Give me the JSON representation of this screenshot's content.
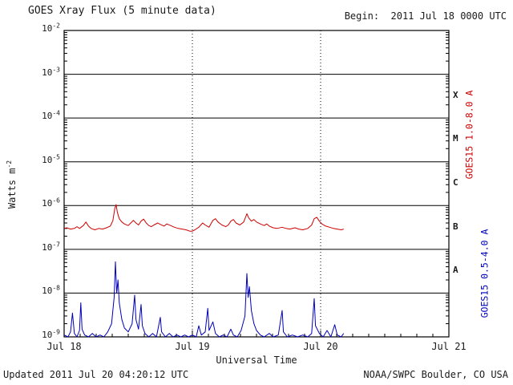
{
  "header": {
    "title": "GOES Xray Flux (5 minute data)",
    "begin_label": "Begin:  2011 Jul 18 0000 UTC"
  },
  "footer": {
    "updated": "Updated 2011 Jul 20 04:20:12 UTC",
    "credit": "NOAA/SWPC Boulder, CO USA"
  },
  "chart_data": {
    "type": "line",
    "title": "GOES Xray Flux (5 minute data)",
    "xlabel": "Universal Time",
    "ylabel": "Watts m-2",
    "y_axis_label": {
      "base": "Watts m",
      "exp": "-2"
    },
    "x_ticks": [
      "Jul 18",
      "Jul 19",
      "Jul 20",
      "Jul 21"
    ],
    "x_range_days": 3,
    "y_log_range": [
      -9,
      -2
    ],
    "y_tick_base": "10",
    "y_tick_exponents": [
      -2,
      -3,
      -4,
      -5,
      -6,
      -7,
      -8,
      -9
    ],
    "grid": {
      "horizontal_decades": true,
      "vertical_dotted_days": true
    },
    "flare_classes": [
      {
        "label": "X",
        "flux": 0.000316
      },
      {
        "label": "M",
        "flux": 3.16e-05
      },
      {
        "label": "C",
        "flux": 3.16e-06
      },
      {
        "label": "B",
        "flux": 3.16e-07
      },
      {
        "label": "A",
        "flux": 3.16e-08
      }
    ],
    "right_labels": [
      {
        "id": "long",
        "text": "GOES15 1.0-8.0 A",
        "color": "#cc0000"
      },
      {
        "id": "short",
        "text": "GOES15 0.5-4.0 A",
        "color": "#0000bb"
      }
    ],
    "series": [
      {
        "id": "xray-long",
        "name": "GOES15 1.0-8.0 A",
        "color": "#cc0000",
        "points": [
          [
            0.0,
            3e-07
          ],
          [
            0.02,
            3.1e-07
          ],
          [
            0.05,
            2.9e-07
          ],
          [
            0.08,
            3e-07
          ],
          [
            0.1,
            3.3e-07
          ],
          [
            0.12,
            3e-07
          ],
          [
            0.15,
            3.5e-07
          ],
          [
            0.17,
            4.2e-07
          ],
          [
            0.19,
            3.4e-07
          ],
          [
            0.21,
            3e-07
          ],
          [
            0.24,
            2.8e-07
          ],
          [
            0.27,
            3e-07
          ],
          [
            0.3,
            2.9e-07
          ],
          [
            0.33,
            3.1e-07
          ],
          [
            0.36,
            3.4e-07
          ],
          [
            0.38,
            4.5e-07
          ],
          [
            0.395,
            8.5e-07
          ],
          [
            0.405,
            1.05e-06
          ],
          [
            0.415,
            7e-07
          ],
          [
            0.43,
            5e-07
          ],
          [
            0.45,
            4.2e-07
          ],
          [
            0.47,
            3.8e-07
          ],
          [
            0.5,
            3.5e-07
          ],
          [
            0.52,
            4e-07
          ],
          [
            0.54,
            4.6e-07
          ],
          [
            0.56,
            4e-07
          ],
          [
            0.58,
            3.6e-07
          ],
          [
            0.6,
            4.4e-07
          ],
          [
            0.62,
            4.9e-07
          ],
          [
            0.64,
            4e-07
          ],
          [
            0.66,
            3.5e-07
          ],
          [
            0.68,
            3.3e-07
          ],
          [
            0.7,
            3.6e-07
          ],
          [
            0.73,
            4e-07
          ],
          [
            0.75,
            3.7e-07
          ],
          [
            0.78,
            3.4e-07
          ],
          [
            0.8,
            3.8e-07
          ],
          [
            0.83,
            3.5e-07
          ],
          [
            0.86,
            3.2e-07
          ],
          [
            0.89,
            3e-07
          ],
          [
            0.92,
            2.9e-07
          ],
          [
            0.95,
            2.8e-07
          ],
          [
            0.98,
            2.6e-07
          ],
          [
            1.0,
            2.6e-07
          ],
          [
            1.02,
            2.8e-07
          ],
          [
            1.05,
            3.2e-07
          ],
          [
            1.08,
            4e-07
          ],
          [
            1.1,
            3.6e-07
          ],
          [
            1.13,
            3.2e-07
          ],
          [
            1.16,
            4.6e-07
          ],
          [
            1.18,
            5e-07
          ],
          [
            1.2,
            4.2e-07
          ],
          [
            1.23,
            3.6e-07
          ],
          [
            1.26,
            3.3e-07
          ],
          [
            1.28,
            3.6e-07
          ],
          [
            1.3,
            4.4e-07
          ],
          [
            1.32,
            4.8e-07
          ],
          [
            1.34,
            4e-07
          ],
          [
            1.37,
            3.6e-07
          ],
          [
            1.4,
            4.2e-07
          ],
          [
            1.425,
            6.5e-07
          ],
          [
            1.44,
            5.2e-07
          ],
          [
            1.46,
            4.4e-07
          ],
          [
            1.48,
            4.8e-07
          ],
          [
            1.5,
            4.2e-07
          ],
          [
            1.53,
            3.8e-07
          ],
          [
            1.56,
            3.5e-07
          ],
          [
            1.58,
            3.8e-07
          ],
          [
            1.6,
            3.4e-07
          ],
          [
            1.63,
            3.1e-07
          ],
          [
            1.66,
            3e-07
          ],
          [
            1.7,
            3.2e-07
          ],
          [
            1.73,
            3e-07
          ],
          [
            1.76,
            2.9e-07
          ],
          [
            1.8,
            3.1e-07
          ],
          [
            1.83,
            2.9e-07
          ],
          [
            1.86,
            2.8e-07
          ],
          [
            1.9,
            3e-07
          ],
          [
            1.93,
            3.6e-07
          ],
          [
            1.95,
            5e-07
          ],
          [
            1.97,
            5.4e-07
          ],
          [
            1.99,
            4.4e-07
          ],
          [
            2.01,
            3.8e-07
          ],
          [
            2.04,
            3.4e-07
          ],
          [
            2.07,
            3.2e-07
          ],
          [
            2.1,
            3e-07
          ],
          [
            2.13,
            2.9e-07
          ],
          [
            2.16,
            2.8e-07
          ],
          [
            2.18,
            2.9e-07
          ]
        ]
      },
      {
        "id": "xray-short",
        "name": "GOES15 0.5-4.0 A",
        "color": "#0000bb",
        "points": [
          [
            0.0,
            1.1e-09
          ],
          [
            0.03,
            1e-09
          ],
          [
            0.05,
            1.3e-09
          ],
          [
            0.065,
            3.5e-09
          ],
          [
            0.08,
            1.2e-09
          ],
          [
            0.1,
            1e-09
          ],
          [
            0.12,
            1.4e-09
          ],
          [
            0.13,
            6e-09
          ],
          [
            0.14,
            1.5e-09
          ],
          [
            0.16,
            1.1e-09
          ],
          [
            0.19,
            1e-09
          ],
          [
            0.22,
            1.2e-09
          ],
          [
            0.25,
            1e-09
          ],
          [
            0.28,
            1.1e-09
          ],
          [
            0.31,
            1e-09
          ],
          [
            0.34,
            1.3e-09
          ],
          [
            0.37,
            2e-09
          ],
          [
            0.39,
            8e-09
          ],
          [
            0.4,
            5.2e-08
          ],
          [
            0.41,
            1e-08
          ],
          [
            0.42,
            2e-08
          ],
          [
            0.43,
            6e-09
          ],
          [
            0.45,
            2.5e-09
          ],
          [
            0.47,
            1.6e-09
          ],
          [
            0.5,
            1.3e-09
          ],
          [
            0.53,
            2e-09
          ],
          [
            0.55,
            9e-09
          ],
          [
            0.56,
            2.5e-09
          ],
          [
            0.58,
            1.5e-09
          ],
          [
            0.6,
            5.5e-09
          ],
          [
            0.61,
            1.8e-09
          ],
          [
            0.63,
            1.2e-09
          ],
          [
            0.66,
            1e-09
          ],
          [
            0.69,
            1.2e-09
          ],
          [
            0.72,
            1e-09
          ],
          [
            0.75,
            2.8e-09
          ],
          [
            0.76,
            1.3e-09
          ],
          [
            0.79,
            1e-09
          ],
          [
            0.82,
            1.2e-09
          ],
          [
            0.85,
            1e-09
          ],
          [
            0.88,
            1.1e-09
          ],
          [
            0.91,
            1e-09
          ],
          [
            0.94,
            1.1e-09
          ],
          [
            0.97,
            1e-09
          ],
          [
            1.0,
            1.1e-09
          ],
          [
            1.03,
            1e-09
          ],
          [
            1.05,
            1.8e-09
          ],
          [
            1.07,
            1.1e-09
          ],
          [
            1.1,
            1.3e-09
          ],
          [
            1.12,
            4.5e-09
          ],
          [
            1.13,
            1.4e-09
          ],
          [
            1.16,
            2.2e-09
          ],
          [
            1.18,
            1.2e-09
          ],
          [
            1.21,
            1e-09
          ],
          [
            1.24,
            1.1e-09
          ],
          [
            1.27,
            1e-09
          ],
          [
            1.3,
            1.5e-09
          ],
          [
            1.32,
            1.1e-09
          ],
          [
            1.35,
            1e-09
          ],
          [
            1.38,
            1.4e-09
          ],
          [
            1.41,
            3e-09
          ],
          [
            1.425,
            2.8e-08
          ],
          [
            1.435,
            8e-09
          ],
          [
            1.445,
            1.4e-08
          ],
          [
            1.46,
            4e-09
          ],
          [
            1.48,
            2e-09
          ],
          [
            1.5,
            1.4e-09
          ],
          [
            1.53,
            1.1e-09
          ],
          [
            1.56,
            1e-09
          ],
          [
            1.6,
            1.2e-09
          ],
          [
            1.63,
            1e-09
          ],
          [
            1.67,
            1.1e-09
          ],
          [
            1.7,
            4e-09
          ],
          [
            1.71,
            1.3e-09
          ],
          [
            1.74,
            1e-09
          ],
          [
            1.78,
            1.1e-09
          ],
          [
            1.82,
            1e-09
          ],
          [
            1.86,
            1.1e-09
          ],
          [
            1.9,
            1e-09
          ],
          [
            1.93,
            1.2e-09
          ],
          [
            1.95,
            7.5e-09
          ],
          [
            1.96,
            1.8e-09
          ],
          [
            1.99,
            1.2e-09
          ],
          [
            2.02,
            1e-09
          ],
          [
            2.05,
            1.4e-09
          ],
          [
            2.08,
            1e-09
          ],
          [
            2.11,
            1.9e-09
          ],
          [
            2.13,
            1.1e-09
          ],
          [
            2.16,
            1e-09
          ],
          [
            2.18,
            1.2e-09
          ]
        ]
      }
    ]
  }
}
